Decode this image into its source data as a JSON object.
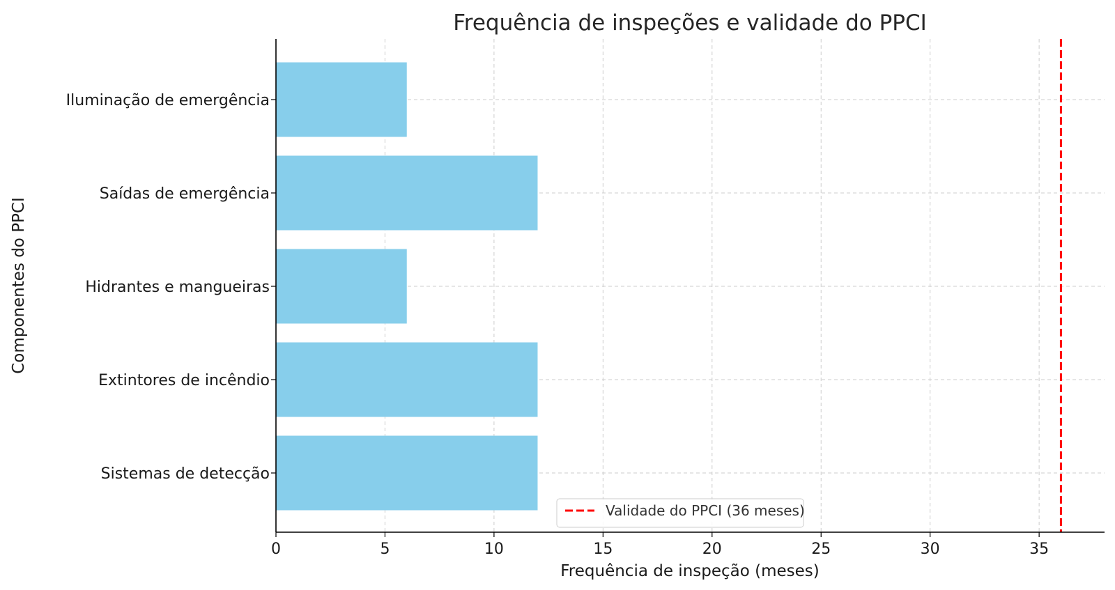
{
  "chart_data": {
    "type": "bar",
    "orientation": "horizontal",
    "title": "Frequência de inspeções e validade do PPCI",
    "xlabel": "Frequência de inspeção (meses)",
    "ylabel": "Componentes do PPCI",
    "categories": [
      "Sistemas de detecção",
      "Extintores de incêndio",
      "Hidrantes e mangueiras",
      "Saídas de emergência",
      "Iluminação de emergência"
    ],
    "values": [
      12,
      12,
      6,
      12,
      6
    ],
    "xlim": [
      0,
      38
    ],
    "xticks": [
      0,
      5,
      10,
      15,
      20,
      25,
      30,
      35
    ],
    "grid": true,
    "bar_color": "#87CEEB",
    "reference_line": {
      "value": 36,
      "style": "dashed",
      "color": "#ff0000",
      "label": "Validade do PPCI (36 meses)"
    },
    "legend": {
      "position": "bottom-center"
    }
  }
}
